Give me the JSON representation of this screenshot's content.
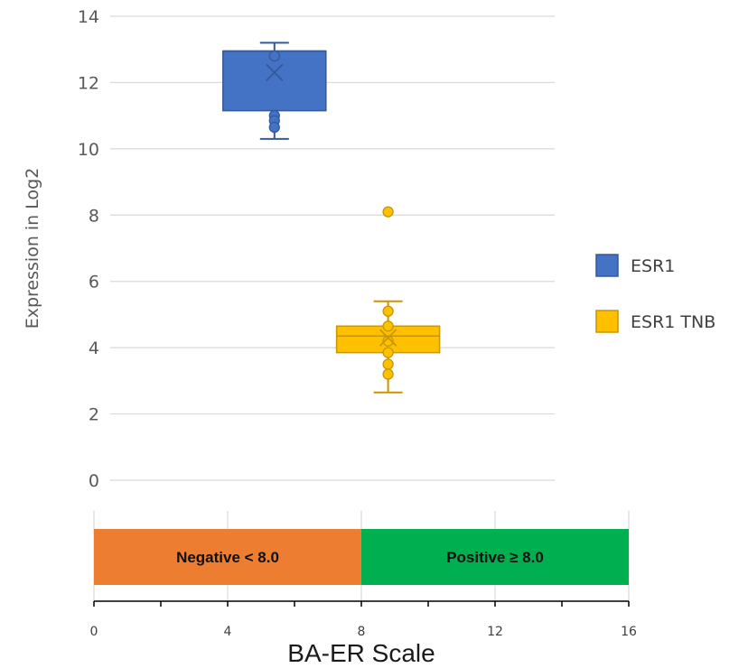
{
  "chart_data": [
    {
      "type": "box",
      "title": "",
      "ylabel": "Expression in Log2",
      "xlabel": "",
      "ylim": [
        0,
        14
      ],
      "y_ticks": [
        "0",
        "2",
        "4",
        "6",
        "8",
        "10",
        "12",
        "14"
      ],
      "grid": true,
      "legend_position": "right",
      "series": [
        {
          "name": "ESR1",
          "color": "#4472C4",
          "x_center": 5.4,
          "whisker_low": 10.3,
          "q1": 11.15,
          "median": 12.95,
          "q3": 12.95,
          "whisker_high": 13.2,
          "mean": 12.3,
          "points": [
            12.8,
            11.0,
            10.85,
            10.65
          ]
        },
        {
          "name": "ESR1 TNB",
          "color": "#FFC000",
          "x_center": 8.8,
          "whisker_low": 2.65,
          "q1": 3.85,
          "median": 4.35,
          "q3": 4.65,
          "whisker_high": 5.4,
          "mean": 4.3,
          "points": [
            8.1,
            5.1,
            4.65,
            4.2,
            3.85,
            3.5,
            3.2
          ]
        }
      ]
    },
    {
      "type": "bar",
      "orientation": "horizontal",
      "title": "",
      "xlabel": "BA-ER Scale",
      "xlim": [
        0,
        16
      ],
      "x_ticks": [
        "0",
        "4",
        "8",
        "12",
        "16"
      ],
      "grid": true,
      "bands": [
        {
          "label": "Negative < 8.0",
          "start": 0,
          "end": 8,
          "color": "#ED7D31"
        },
        {
          "label": "Positive ≥ 8.0",
          "start": 8,
          "end": 16,
          "color": "#00B050"
        }
      ]
    }
  ]
}
